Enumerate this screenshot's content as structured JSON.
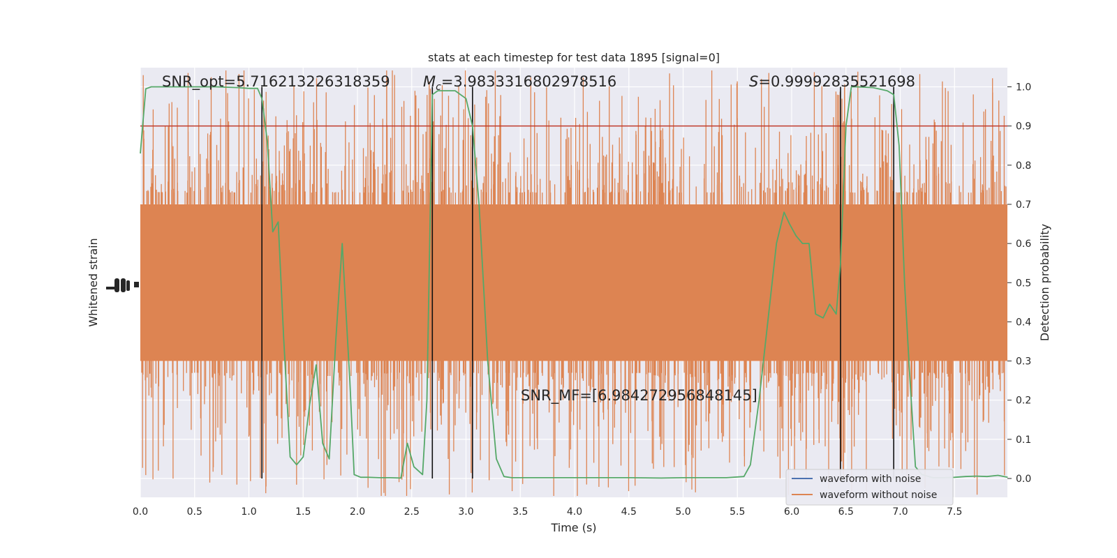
{
  "chart_data": {
    "type": "line",
    "title": "stats at each timestep for test data 1895 [signal=0]",
    "xlabel": "Time (s)",
    "ylabel_left": "Whitened strain",
    "ylabel_right": "Detection probability",
    "xlim": [
      0,
      8.0
    ],
    "ylim_right": [
      -0.05,
      1.05
    ],
    "x_ticks": [
      0.0,
      0.5,
      1.0,
      1.5,
      2.0,
      2.5,
      3.0,
      3.5,
      4.0,
      4.5,
      5.0,
      5.5,
      6.0,
      6.5,
      7.0,
      7.5
    ],
    "x_tick_labels": [
      "0.0",
      "0.5",
      "1.0",
      "1.5",
      "2.0",
      "2.5",
      "3.0",
      "3.5",
      "4.0",
      "4.5",
      "5.0",
      "5.5",
      "6.0",
      "6.5",
      "7.0",
      "7.5"
    ],
    "y_right_ticks": [
      0.0,
      0.1,
      0.2,
      0.3,
      0.4,
      0.5,
      0.6,
      0.7,
      0.8,
      0.9,
      1.0
    ],
    "y_right_tick_labels": [
      "0.0",
      "0.1",
      "0.2",
      "0.3",
      "0.4",
      "0.5",
      "0.6",
      "0.7",
      "0.8",
      "0.9",
      "1.0"
    ],
    "grid": true,
    "threshold": 0.9,
    "threshold_color": "#c0392b",
    "vertical_markers": [
      1.12,
      2.69,
      3.06,
      6.45,
      6.94
    ],
    "annotations": {
      "snr_opt": "SNR_opt=5.716213226318359",
      "mc_symbol": "M",
      "mc_sub": "c",
      "mc_value": "=3.9833316802978516",
      "s_symbol": "S",
      "s_value": "=0.99992835521698",
      "snr_mf": "SNR_MF=[6.984272956848145]"
    },
    "legend": {
      "location": "lower-right",
      "entries": [
        {
          "label": "waveform with noise",
          "color": "#4c72b0"
        },
        {
          "label": "waveform without noise",
          "color": "#dd8452"
        }
      ]
    },
    "noise_series": {
      "name": "waveform without noise",
      "color": "#dd8452",
      "dense_band": [
        0.3,
        0.7
      ]
    },
    "probability_series": {
      "color": "#55a868",
      "x": [
        0.0,
        0.05,
        0.1,
        0.2,
        0.3,
        0.5,
        0.7,
        0.9,
        1.0,
        1.08,
        1.12,
        1.17,
        1.22,
        1.27,
        1.32,
        1.38,
        1.44,
        1.5,
        1.56,
        1.62,
        1.68,
        1.74,
        1.8,
        1.86,
        1.9,
        1.93,
        1.97,
        2.03,
        2.1,
        2.2,
        2.3,
        2.4,
        2.46,
        2.52,
        2.6,
        2.64,
        2.69,
        2.74,
        2.8,
        2.9,
        3.0,
        3.06,
        3.12,
        3.2,
        3.28,
        3.35,
        3.42,
        3.55,
        3.8,
        4.0,
        4.2,
        4.5,
        4.8,
        5.0,
        5.2,
        5.4,
        5.56,
        5.62,
        5.7,
        5.78,
        5.86,
        5.93,
        5.98,
        6.04,
        6.1,
        6.16,
        6.22,
        6.29,
        6.35,
        6.41,
        6.45,
        6.5,
        6.55,
        6.6,
        6.75,
        6.88,
        6.94,
        6.99,
        7.04,
        7.09,
        7.14,
        7.2,
        7.3,
        7.4,
        7.5,
        7.6,
        7.7,
        7.8,
        7.9,
        7.99
      ],
      "y": [
        0.83,
        0.995,
        1.0,
        1.0,
        1.0,
        1.0,
        1.0,
        0.998,
        0.996,
        0.996,
        0.97,
        0.86,
        0.63,
        0.655,
        0.36,
        0.055,
        0.035,
        0.055,
        0.19,
        0.29,
        0.09,
        0.05,
        0.35,
        0.6,
        0.4,
        0.25,
        0.01,
        0.003,
        0.003,
        0.002,
        0.002,
        0.001,
        0.09,
        0.03,
        0.01,
        0.2,
        0.98,
        0.99,
        0.99,
        0.99,
        0.97,
        0.9,
        0.7,
        0.3,
        0.05,
        0.005,
        0.002,
        0.002,
        0.002,
        0.002,
        0.002,
        0.002,
        0.001,
        0.002,
        0.002,
        0.002,
        0.005,
        0.035,
        0.2,
        0.4,
        0.6,
        0.68,
        0.65,
        0.62,
        0.6,
        0.6,
        0.42,
        0.41,
        0.445,
        0.42,
        0.55,
        0.9,
        1.0,
        1.0,
        0.998,
        0.99,
        0.98,
        0.85,
        0.5,
        0.25,
        0.03,
        0.01,
        0.002,
        0.002,
        0.003,
        0.005,
        0.006,
        0.005,
        0.008,
        0.003
      ]
    }
  }
}
